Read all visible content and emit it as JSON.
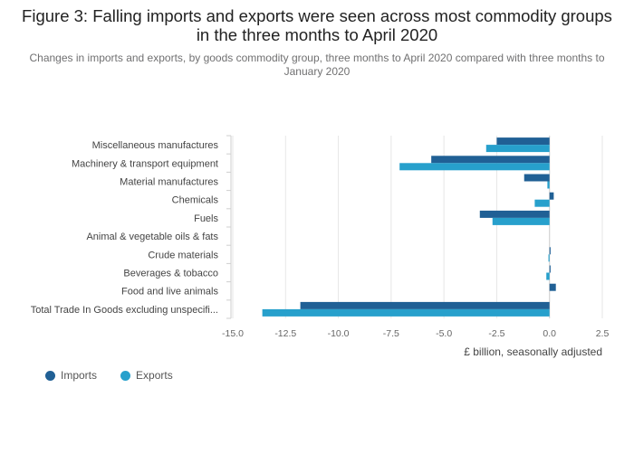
{
  "title": "Figure 3: Falling imports and exports were seen across most commodity groups in the three months to April 2020",
  "subtitle": "Changes in imports and exports, by goods commodity group, three months to April 2020 compared with three months to January 2020",
  "colors": {
    "imports": "#206095",
    "exports": "#27a0cc",
    "grid": "#e6e6e6",
    "axis": "#cfcfcf"
  },
  "chart_data": {
    "type": "bar",
    "orientation": "horizontal",
    "categories": [
      "Miscellaneous manufactures",
      "Machinery & transport equipment",
      "Material manufactures",
      "Chemicals",
      "Fuels",
      "Animal & vegetable oils & fats",
      "Crude materials",
      "Beverages & tobacco",
      "Food and live animals",
      "Total Trade In Goods excluding unspecifi..."
    ],
    "series": [
      {
        "name": "Imports",
        "values": [
          -2.5,
          -5.6,
          -1.2,
          0.2,
          -3.3,
          0.0,
          0.05,
          0.05,
          0.3,
          -11.8
        ]
      },
      {
        "name": "Exports",
        "values": [
          -3.0,
          -7.1,
          -0.1,
          -0.7,
          -2.7,
          0.0,
          -0.05,
          -0.15,
          0.0,
          -13.6
        ]
      }
    ],
    "xlim": [
      -15,
      2.5
    ],
    "xticks": [
      -15,
      -12.5,
      -10,
      -7.5,
      -5,
      -2.5,
      0,
      2.5
    ],
    "xtick_labels": [
      "-15.0",
      "-12.5",
      "-10.0",
      "-7.5",
      "-5.0",
      "-2.5",
      "0.0",
      "2.5"
    ],
    "xlabel": "£ billion, seasonally adjusted",
    "ylabel": "",
    "grid": true,
    "legend_position": "bottom-left"
  }
}
